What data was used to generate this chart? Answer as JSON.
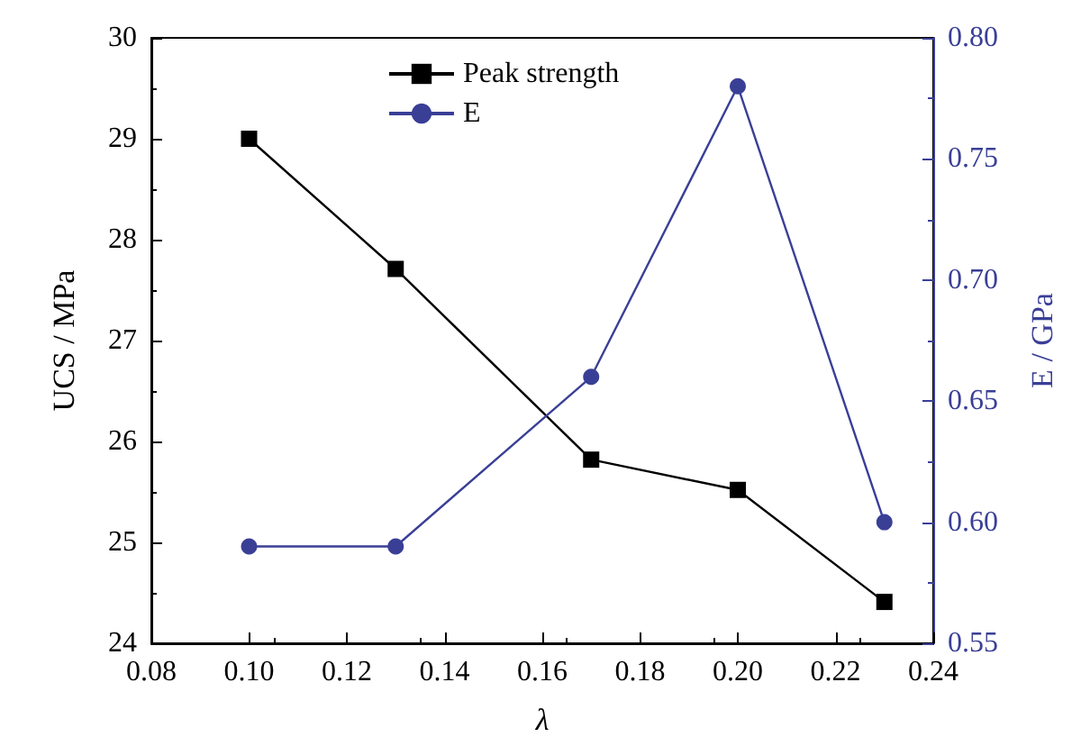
{
  "chart_data": {
    "type": "line",
    "xlabel": "λ",
    "ylabel": "UCS / MPa",
    "y2label": "E / GPa",
    "x": [
      0.1,
      0.13,
      0.17,
      0.2,
      0.23
    ],
    "series": [
      {
        "name": "Peak strength",
        "color": "#000000",
        "marker": "square",
        "values": [
          29.0,
          27.71,
          25.82,
          25.52,
          24.41
        ]
      },
      {
        "name": "E",
        "color": "#3a3f96",
        "marker": "circle",
        "axis": "y2",
        "values": [
          0.59,
          0.59,
          0.66,
          0.78,
          0.6
        ]
      }
    ],
    "xlim": [
      0.08,
      0.24
    ],
    "xticks": [
      {
        "value": 0.08,
        "label": "0.08"
      },
      {
        "value": 0.1,
        "label": "0.10"
      },
      {
        "value": 0.12,
        "label": "0.12"
      },
      {
        "value": 0.14,
        "label": "0.14"
      },
      {
        "value": 0.16,
        "label": "0.16"
      },
      {
        "value": 0.18,
        "label": "0.18"
      },
      {
        "value": 0.2,
        "label": "0.20"
      },
      {
        "value": 0.22,
        "label": "0.22"
      },
      {
        "value": 0.24,
        "label": "0.24"
      }
    ],
    "ylim": [
      24,
      30
    ],
    "yticks": [
      24,
      25,
      26,
      27,
      28,
      29,
      30
    ],
    "y2lim": [
      0.55,
      0.8
    ],
    "y2ticks": [
      {
        "value": 0.55,
        "label": "0.55"
      },
      {
        "value": 0.6,
        "label": "0.60"
      },
      {
        "value": 0.65,
        "label": "0.65"
      },
      {
        "value": 0.7,
        "label": "0.70"
      },
      {
        "value": 0.75,
        "label": "0.75"
      },
      {
        "value": 0.8,
        "label": "0.80"
      }
    ],
    "grid": false,
    "legend": "top",
    "line_style": "solid"
  }
}
